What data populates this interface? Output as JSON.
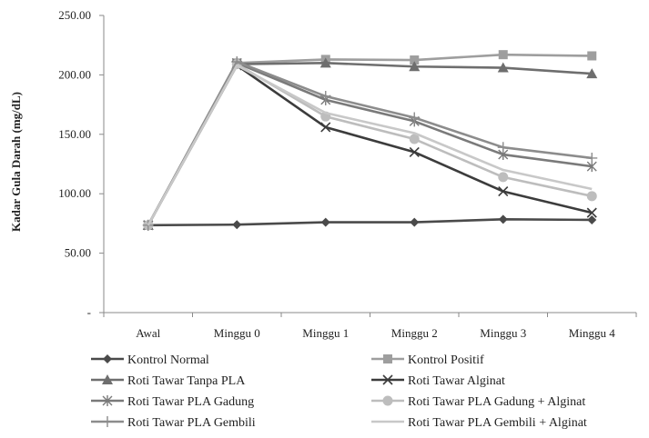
{
  "chart_data": {
    "type": "line",
    "title": "",
    "xlabel": "",
    "ylabel": "Kadar Gula Darah (mg/dL)",
    "categories": [
      "Awal",
      "Minggu 0",
      "Minggu 1",
      "Minggu 2",
      "Minggu 3",
      "Minggu 4"
    ],
    "ylim": [
      0,
      250
    ],
    "yticks": [
      0,
      50,
      100,
      150,
      200,
      250
    ],
    "ytick_labels": [
      "-",
      "50.00",
      "100.00",
      "150.00",
      "200.00",
      "250.00"
    ],
    "grid": false,
    "legend_position": "bottom",
    "series": [
      {
        "name": "Kontrol Normal",
        "values": [
          73.5,
          74,
          76,
          76,
          78.5,
          78
        ],
        "color": "#4a4a4a",
        "marker": "diamond"
      },
      {
        "name": "Kontrol Positif",
        "values": [
          73.5,
          210,
          213,
          212.5,
          217,
          216
        ],
        "color": "#9e9e9e",
        "marker": "square"
      },
      {
        "name": "Roti Tawar Tanpa PLA",
        "values": [
          73.5,
          209,
          210,
          207,
          206,
          201
        ],
        "color": "#6e6e6e",
        "marker": "triangle"
      },
      {
        "name": "Roti Tawar Alginat",
        "values": [
          73.5,
          208,
          156,
          135,
          102,
          84
        ],
        "color": "#3c3c3c",
        "marker": "x"
      },
      {
        "name": "Roti Tawar PLA Gadung",
        "values": [
          73.5,
          210,
          179,
          161,
          133,
          123
        ],
        "color": "#7a7a7a",
        "marker": "star"
      },
      {
        "name": "Roti Tawar PLA Gadung + Alginat",
        "values": [
          73.5,
          209,
          165,
          146,
          114,
          98
        ],
        "color": "#bdbdbd",
        "marker": "circle"
      },
      {
        "name": "Roti Tawar PLA Gembili",
        "values": [
          73.5,
          211,
          182,
          164,
          139,
          130
        ],
        "color": "#8c8c8c",
        "marker": "plus"
      },
      {
        "name": "Roti Tawar PLA Gembili + Alginat",
        "values": [
          73.5,
          208,
          168,
          151,
          120,
          104
        ],
        "color": "#c8c8c8",
        "marker": "none"
      }
    ]
  }
}
